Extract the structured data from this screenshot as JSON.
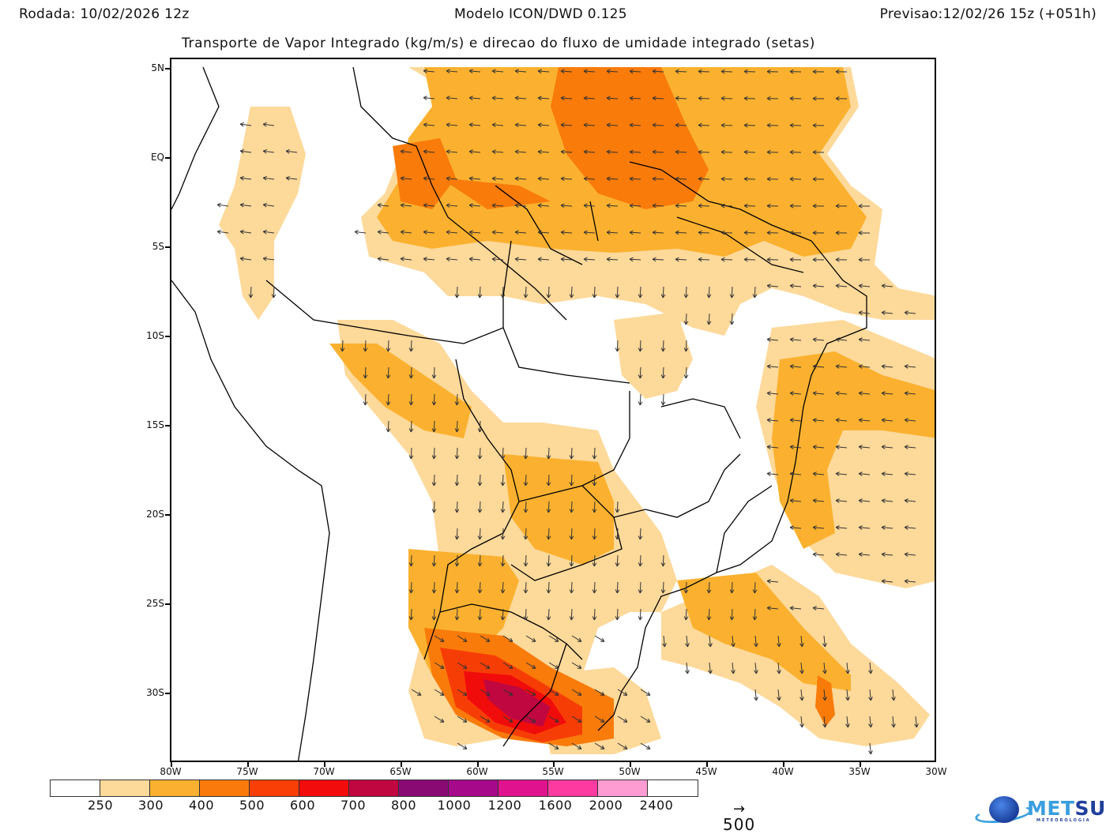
{
  "header": {
    "run": "Rodada: 10/02/2026 12z",
    "model": "Modelo ICON/DWD 0.125",
    "forecast": "Previsao:12/02/26 15z (+051h)",
    "subtitle": "Transporte de Vapor Integrado (kg/m/s) e direcao do fluxo de umidade integrado (setas)"
  },
  "map": {
    "lat_labels": [
      "5N",
      "EQ",
      "5S",
      "10S",
      "15S",
      "20S",
      "25S",
      "30S"
    ],
    "lon_labels": [
      "80W",
      "75W",
      "70W",
      "65W",
      "60W",
      "55W",
      "50W",
      "45W",
      "40W",
      "35W",
      "30W"
    ],
    "extent": {
      "lon_min": -80,
      "lon_max": -30,
      "lat_min": -34,
      "lat_max": 5.5
    },
    "shading_colors": {
      "250-300": "#fdd99a",
      "300-400": "#fbb12f",
      "400-500": "#f97b0a",
      "500-600": "#f73d06",
      "600-700": "#f10c0c",
      "700-800": "#c0073f"
    }
  },
  "colorbar": {
    "levels": [
      "250",
      "300",
      "400",
      "500",
      "600",
      "700",
      "800",
      "1000",
      "1200",
      "1600",
      "2000",
      "2400"
    ],
    "colors": [
      "#ffffff",
      "#fdd99a",
      "#fbb12f",
      "#fa7b0b",
      "#f93e06",
      "#f20c0c",
      "#c0073f",
      "#8a0a74",
      "#a60a8a",
      "#e0128e",
      "#fc3aa0",
      "#fc9cd2",
      "#ffffff"
    ]
  },
  "reference_vector": {
    "arrow": "→",
    "value": "500"
  },
  "logo": {
    "brand_part1": "MET",
    "brand_part2": "SUL",
    "tagline": "METEOROLOGIA"
  }
}
